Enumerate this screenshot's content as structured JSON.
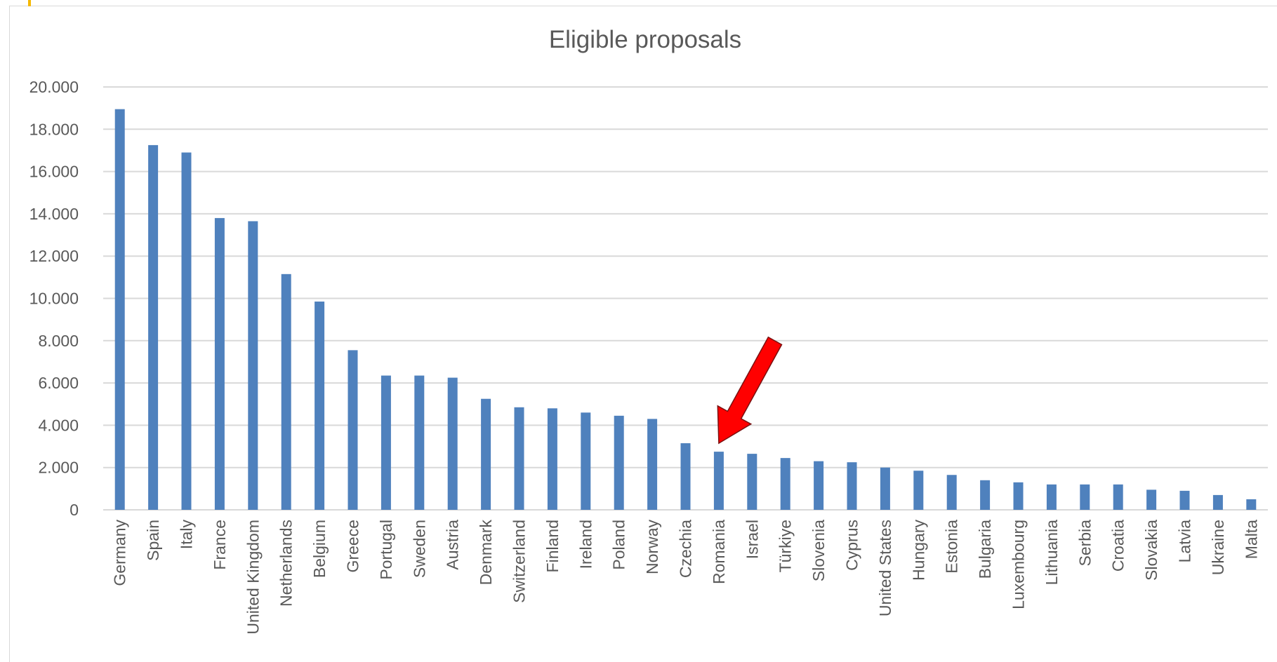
{
  "chart_data": {
    "type": "bar",
    "title": "Eligible proposals",
    "xlabel": "",
    "ylabel": "",
    "ylim": [
      0,
      20000
    ],
    "yticks": [
      0,
      2000,
      4000,
      6000,
      8000,
      10000,
      12000,
      14000,
      16000,
      18000,
      20000
    ],
    "ytick_labels": [
      "0",
      "2.000",
      "4.000",
      "6.000",
      "8.000",
      "10.000",
      "12.000",
      "14.000",
      "16.000",
      "18.000",
      "20.000"
    ],
    "grid": true,
    "legend": "none",
    "categories": [
      "Germany",
      "Spain",
      "Italy",
      "France",
      "United Kingdom",
      "Netherlands",
      "Belgium",
      "Greece",
      "Portugal",
      "Sweden",
      "Austria",
      "Denmark",
      "Switzerland",
      "Finland",
      "Ireland",
      "Poland",
      "Norway",
      "Czechia",
      "Romania",
      "Israel",
      "Türkiye",
      "Slovenia",
      "Cyprus",
      "United States",
      "Hungary",
      "Estonia",
      "Bulgaria",
      "Luxembourg",
      "Lithuania",
      "Serbia",
      "Croatia",
      "Slovakia",
      "Latvia",
      "Ukraine",
      "Malta"
    ],
    "values": [
      18950,
      17250,
      16900,
      13800,
      13650,
      11150,
      9850,
      7550,
      6350,
      6350,
      6250,
      5250,
      4850,
      4800,
      4600,
      4450,
      4300,
      3150,
      2750,
      2650,
      2450,
      2300,
      2250,
      2000,
      1850,
      1650,
      1400,
      1300,
      1200,
      1200,
      1200,
      950,
      900,
      700,
      500
    ],
    "highlight": "Romania",
    "colors": {
      "bar": "#4f81bd",
      "grid": "#d9d9d9",
      "text": "#595959",
      "arrow": "#ff0000",
      "arrow_outline": "#7a1010"
    }
  }
}
